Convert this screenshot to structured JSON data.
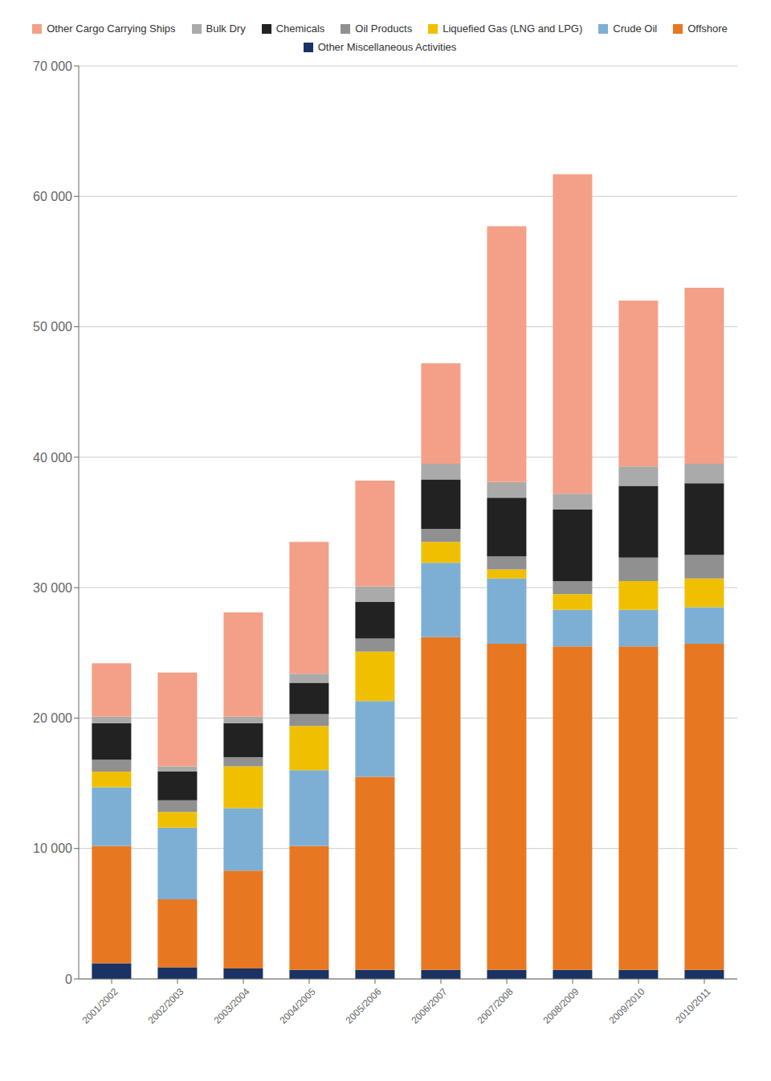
{
  "chart_data": {
    "type": "bar",
    "stacked": true,
    "categories": [
      "2001/2002",
      "2002/2003",
      "2003/2004",
      "2004/2005",
      "2005/2006",
      "2006/2007",
      "2007/2008",
      "2008/2009",
      "2009/2010",
      "2010/2011"
    ],
    "series": [
      {
        "name": "Other Miscellaneous Activities",
        "color": "#1a3364",
        "values": [
          1200,
          900,
          800,
          700,
          700,
          700,
          700,
          700,
          700,
          700
        ]
      },
      {
        "name": "Offshore",
        "color": "#e87722",
        "values": [
          9000,
          5200,
          7500,
          9500,
          14800,
          25500,
          25000,
          24800,
          24800,
          25000
        ]
      },
      {
        "name": "Crude Oil",
        "color": "#7dafd4",
        "values": [
          4500,
          5500,
          4800,
          5800,
          5800,
          5700,
          5000,
          2800,
          2800,
          2800
        ]
      },
      {
        "name": "Liquefied Gas (LNG and LPG)",
        "color": "#f0c000",
        "values": [
          1200,
          1200,
          3200,
          3400,
          3800,
          1600,
          700,
          1200,
          2200,
          2200
        ]
      },
      {
        "name": "Oil Products",
        "color": "#909090",
        "values": [
          900,
          900,
          700,
          900,
          1000,
          1000,
          1000,
          1000,
          1800,
          1800
        ]
      },
      {
        "name": "Chemicals",
        "color": "#222222",
        "values": [
          2800,
          2200,
          2600,
          2400,
          2800,
          3800,
          4500,
          5500,
          5500,
          5500
        ]
      },
      {
        "name": "Bulk Dry",
        "color": "#aaaaaa",
        "values": [
          500,
          400,
          500,
          700,
          1200,
          1200,
          1200,
          1200,
          1500,
          1500
        ]
      },
      {
        "name": "Other Cargo Carrying Ships",
        "color": "#f4a088",
        "values": [
          4100,
          7200,
          8000,
          10100,
          8100,
          7700,
          19600,
          24500,
          12700,
          13500
        ]
      }
    ],
    "ylim": [
      0,
      70000
    ],
    "yticks": [
      0,
      {
        "value": 10000,
        "label": "10 000"
      },
      {
        "value": 20000,
        "label": "20 000"
      },
      {
        "value": 30000,
        "label": "30 000"
      },
      {
        "value": 40000,
        "label": "40 000"
      },
      {
        "value": 50000,
        "label": "50 000"
      },
      {
        "value": 60000,
        "label": "60 000"
      },
      {
        "value": 70000,
        "label": "70 000"
      }
    ],
    "grid": true,
    "legend": "top"
  }
}
